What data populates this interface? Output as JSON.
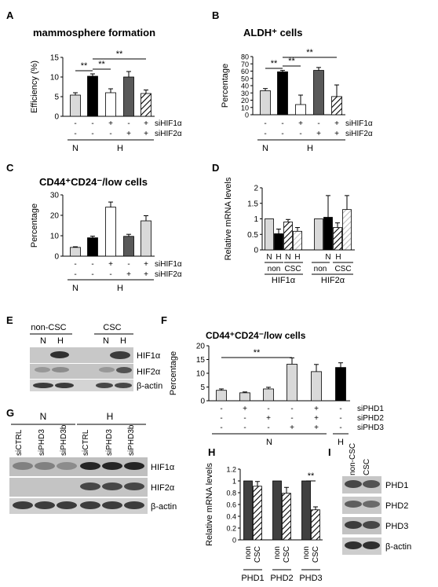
{
  "chart_data": [
    {
      "panel": "A",
      "type": "bar",
      "title": "mammosphere formation",
      "ylabel": "Efficiency (%)",
      "ylim": [
        0,
        15
      ],
      "yticks": [
        "0",
        "5",
        "10",
        "15"
      ],
      "values": [
        5.4,
        10.2,
        6.0,
        10.0,
        5.8
      ],
      "errors": [
        0.6,
        0.6,
        1.0,
        1.4,
        0.9
      ],
      "fills": [
        "#d9d9d9",
        "#000000",
        "#ffffff",
        "#595959",
        "hatch"
      ],
      "row_labels": [
        "siHIF1α",
        "siHIF2α"
      ],
      "row1": [
        "-",
        "-",
        "+",
        "-",
        "+"
      ],
      "row2": [
        "-",
        "-",
        "-",
        "+",
        "+"
      ],
      "group_labels": [
        "N",
        "H"
      ],
      "significance": [
        "**",
        "**",
        "**"
      ]
    },
    {
      "panel": "B",
      "type": "bar",
      "title": "ALDH⁺ cells",
      "ylabel": "Percentage",
      "ylim": [
        0,
        80
      ],
      "yticks": [
        "0",
        "10",
        "20",
        "30",
        "40",
        "50",
        "60",
        "70",
        "80"
      ],
      "values": [
        33,
        59,
        14,
        61,
        25
      ],
      "errors": [
        3,
        2,
        13,
        4,
        16
      ],
      "fills": [
        "#d9d9d9",
        "#000000",
        "#ffffff",
        "#595959",
        "hatch"
      ],
      "row_labels": [
        "siHIF1α",
        "siHIF2α"
      ],
      "row1": [
        "-",
        "-",
        "+",
        "-",
        "+"
      ],
      "row2": [
        "-",
        "-",
        "-",
        "+",
        "+"
      ],
      "group_labels": [
        "N",
        "H"
      ],
      "significance": [
        "**",
        "**",
        "**"
      ]
    },
    {
      "panel": "C",
      "type": "bar",
      "title": "CD44⁺CD24⁻/low cells",
      "ylabel": "Percentage",
      "ylim": [
        0,
        30
      ],
      "yticks": [
        "0",
        "10",
        "20",
        "30"
      ],
      "values": [
        4.3,
        9.0,
        24.0,
        9.7,
        17.3
      ],
      "errors": [
        0.3,
        0.8,
        2.5,
        1.0,
        2.5
      ],
      "fills": [
        "#d9d9d9",
        "#000000",
        "#ffffff",
        "#595959",
        "#d9d9d9"
      ],
      "row_labels": [
        "siHIF1α",
        "siHIF2α"
      ],
      "row1": [
        "-",
        "-",
        "+",
        "-",
        "+"
      ],
      "row2": [
        "-",
        "-",
        "-",
        "+",
        "+"
      ],
      "group_labels": [
        "N",
        "H"
      ]
    },
    {
      "panel": "D",
      "type": "bar",
      "ylabel": "Relative mRNA levels",
      "ylim": [
        0,
        2
      ],
      "yticks": [
        "0",
        "0.5",
        "1",
        "1.5",
        "2"
      ],
      "values": [
        1.0,
        0.52,
        0.9,
        0.6,
        1.0,
        1.05,
        0.72,
        1.3
      ],
      "errors": [
        0,
        0.15,
        0.08,
        0.12,
        0,
        0.7,
        0.15,
        0.45
      ],
      "fills": [
        "#d9d9d9",
        "#000000",
        "hatch",
        "hatch-light",
        "#d9d9d9",
        "#000000",
        "hatch",
        "hatch-light"
      ],
      "condition_labels": [
        "N",
        "H",
        "N",
        "H"
      ],
      "subgroup_labels": [
        "non",
        "CSC"
      ],
      "gene_labels": [
        "HIF1α",
        "HIF2α"
      ]
    },
    {
      "panel": "F",
      "type": "bar",
      "title": "CD44⁺CD24⁻/low cells",
      "ylabel": "Percentage",
      "ylim": [
        0,
        20
      ],
      "yticks": [
        "0",
        "5",
        "10",
        "15",
        "20"
      ],
      "values": [
        3.8,
        2.9,
        4.3,
        13.3,
        10.6,
        12.1
      ],
      "errors": [
        0.5,
        0.3,
        0.6,
        2.3,
        2.6,
        1.7
      ],
      "fills": [
        "#d9d9d9",
        "#d9d9d9",
        "#d9d9d9",
        "#d9d9d9",
        "#d9d9d9",
        "#000000"
      ],
      "row_labels": [
        "siPHD1",
        "siPHD2",
        "siPHD3"
      ],
      "row1": [
        "-",
        "+",
        "-",
        "-",
        "+",
        "-"
      ],
      "row2": [
        "-",
        "-",
        "+",
        "-",
        "+",
        "-"
      ],
      "row3": [
        "-",
        "-",
        "-",
        "+",
        "+",
        "-"
      ],
      "group_labels": [
        "N",
        "H"
      ],
      "significance": [
        "**"
      ]
    },
    {
      "panel": "H",
      "type": "bar",
      "ylabel": "Relative mRNA levels",
      "ylim": [
        0,
        1.2
      ],
      "yticks": [
        "0",
        "0.2",
        "0.4",
        "0.6",
        "0.8",
        "1",
        "1.2"
      ],
      "values": [
        1.0,
        0.91,
        1.0,
        0.79,
        1.0,
        0.51
      ],
      "errors": [
        0,
        0.08,
        0,
        0.1,
        0,
        0.05
      ],
      "fills": [
        "#404040",
        "hatch",
        "#404040",
        "hatch",
        "#404040",
        "hatch"
      ],
      "pair_labels": [
        "non",
        "CSC"
      ],
      "gene_labels": [
        "PHD1",
        "PHD2",
        "PHD3"
      ],
      "significance": [
        "**"
      ]
    }
  ],
  "blots": {
    "E": {
      "panel": "E",
      "group_labels": [
        "non-CSC",
        "CSC"
      ],
      "lane_labels": [
        "N",
        "H",
        "N",
        "H"
      ],
      "band_labels": [
        "HIF1α",
        "HIF2α",
        "β-actin"
      ]
    },
    "G": {
      "panel": "G",
      "group_labels": [
        "N",
        "H"
      ],
      "lane_labels": [
        "siCTRL",
        "siPHD3",
        "siPHD3b",
        "siCTRL",
        "siPHD3",
        "siPHD3b"
      ],
      "band_labels": [
        "HIF1α",
        "HIF2α",
        "β-actin"
      ]
    },
    "I": {
      "panel": "I",
      "lane_labels": [
        "non-CSC",
        "CSC"
      ],
      "band_labels": [
        "PHD1",
        "PHD2",
        "PHD3",
        "β-actin"
      ]
    }
  }
}
